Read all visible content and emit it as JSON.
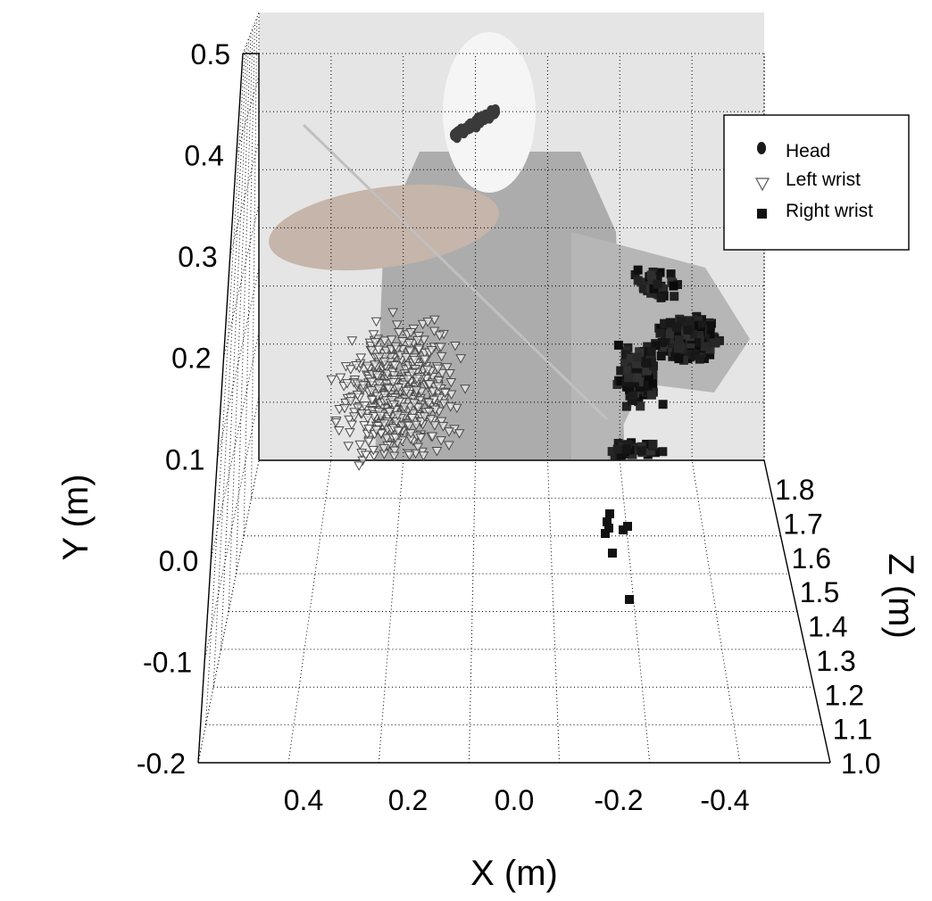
{
  "chart_data": {
    "type": "scatter",
    "subtype": "3d-scatter",
    "background": "photo of a violinist (face obscured by a white oval) behind the plot",
    "xlabel": "X (m)",
    "ylabel": "Y (m)",
    "zlabel": "Z (m)",
    "xlim": [
      0.5,
      -0.5
    ],
    "ylim": [
      -0.2,
      0.5
    ],
    "zlim": [
      1.0,
      1.8
    ],
    "x_ticks": [
      "0.4",
      "0.2",
      "0.0",
      "-0.2",
      "-0.4"
    ],
    "y_ticks": [
      "-0.2",
      "-0.1",
      "0.0",
      "0.1",
      "0.2",
      "0.3",
      "0.4",
      "0.5"
    ],
    "z_ticks": [
      "1.0",
      "1.1",
      "1.2",
      "1.3",
      "1.4",
      "1.5",
      "1.6",
      "1.7",
      "1.8"
    ],
    "grid": true,
    "legend": {
      "placement": "top-right"
    },
    "series": [
      {
        "name": "Head",
        "marker": "filled circle",
        "color": "#3a3a3a",
        "approx": {
          "x": [
            -0.01,
            0.07
          ],
          "y": [
            0.43,
            0.47
          ],
          "z": [
            1.75,
            1.8
          ]
        }
      },
      {
        "name": "Left wrist",
        "marker": "open triangle down",
        "color": "#555555",
        "approx": {
          "x": [
            0.1,
            0.38
          ],
          "y": [
            0.12,
            0.35
          ],
          "z": [
            1.65,
            1.8
          ]
        }
      },
      {
        "name": "Right wrist",
        "marker": "filled square",
        "color": "#111111",
        "approx": {
          "x": [
            -0.15,
            -0.45
          ],
          "y": [
            0.1,
            0.35
          ],
          "z": [
            1.4,
            1.8
          ]
        }
      }
    ]
  }
}
